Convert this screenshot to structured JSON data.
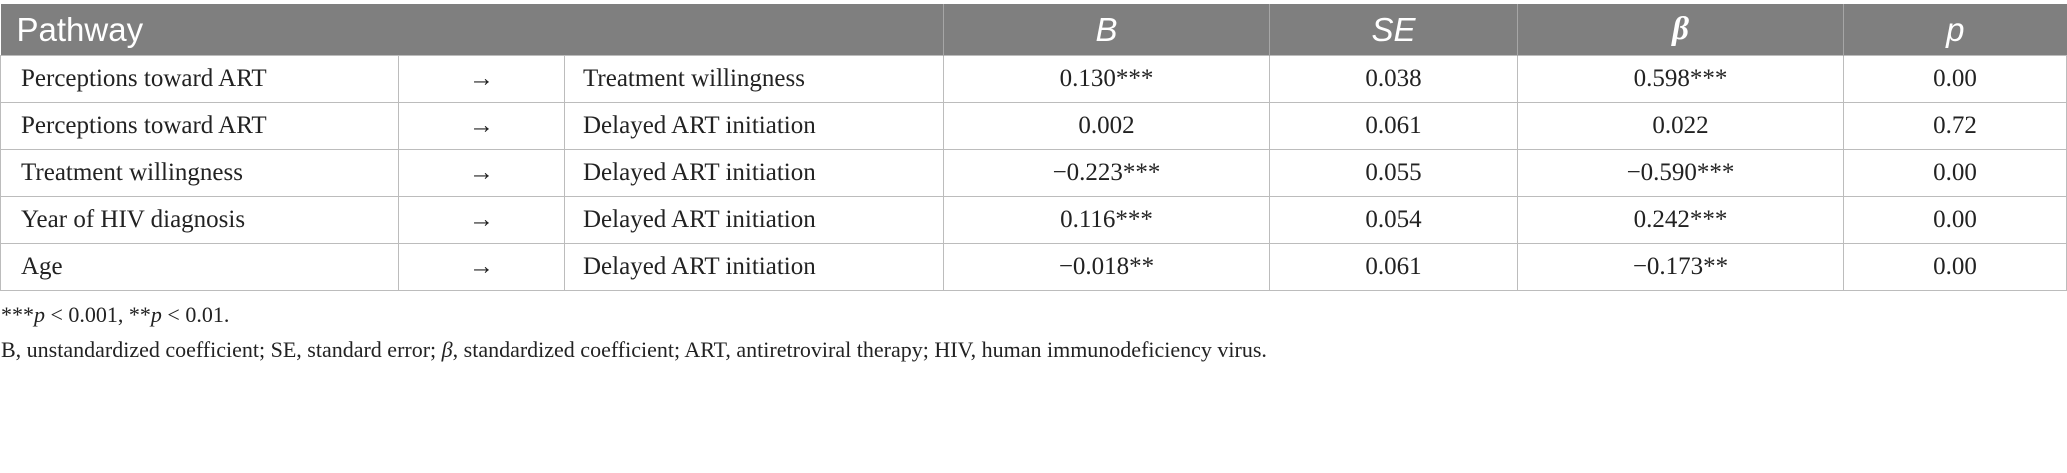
{
  "table": {
    "headers": {
      "pathway": "Pathway",
      "b": "B",
      "se": "SE",
      "beta": "β",
      "p": "p"
    },
    "rows": [
      {
        "from": "Perceptions toward ART",
        "arrow": "→",
        "to": "Treatment willingness",
        "b": "0.130***",
        "se": "0.038",
        "beta": "0.598***",
        "p": "0.00"
      },
      {
        "from": "Perceptions toward ART",
        "arrow": "→",
        "to": "Delayed ART initiation",
        "b": "0.002",
        "se": "0.061",
        "beta": "0.022",
        "p": "0.72"
      },
      {
        "from": "Treatment willingness",
        "arrow": "→",
        "to": "Delayed ART initiation",
        "b": "−0.223***",
        "se": "0.055",
        "beta": "−0.590***",
        "p": "0.00"
      },
      {
        "from": "Year of HIV diagnosis",
        "arrow": "→",
        "to": "Delayed ART initiation",
        "b": "0.116***",
        "se": "0.054",
        "beta": "0.242***",
        "p": "0.00"
      },
      {
        "from": "Age",
        "arrow": "→",
        "to": "Delayed ART initiation",
        "b": "−0.018**",
        "se": "0.061",
        "beta": "−0.173**",
        "p": "0.00"
      }
    ]
  },
  "footnotes": {
    "sig1_stars": "***",
    "sig1_p": "p",
    "sig1_rest": " < 0.001, **",
    "sig2_p": "p",
    "sig2_rest": " < 0.01.",
    "abbr_start": "B, unstandardized coefficient; SE, standard error; ",
    "abbr_beta": "β",
    "abbr_end": ", standardized coefficient; ART, antiretroviral therapy; HIV, human immunodeficiency virus."
  }
}
